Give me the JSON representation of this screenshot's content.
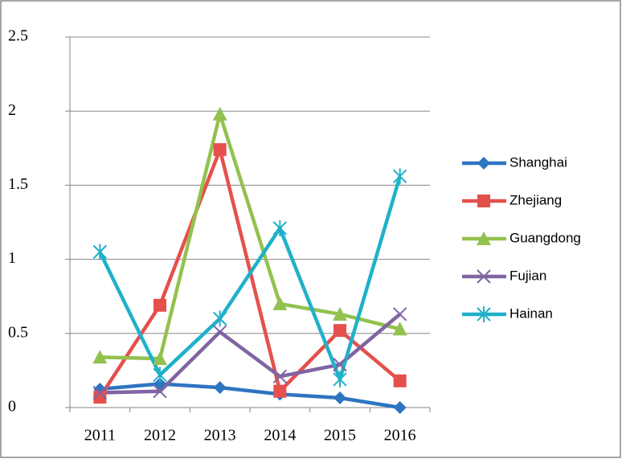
{
  "chart_data": {
    "type": "line",
    "categories": [
      "2011",
      "2012",
      "2013",
      "2014",
      "2015",
      "2016"
    ],
    "series": [
      {
        "name": "Shanghai",
        "color": "#2e75c0",
        "marker": "diamond",
        "values": [
          0.125,
          0.16,
          0.135,
          0.09,
          0.065,
          0.0
        ]
      },
      {
        "name": "Zhejiang",
        "color": "#e5504c",
        "marker": "square",
        "values": [
          0.07,
          0.69,
          1.74,
          0.11,
          0.52,
          0.18
        ]
      },
      {
        "name": "Guangdong",
        "color": "#93c14f",
        "marker": "triangle",
        "values": [
          0.34,
          0.33,
          1.98,
          0.7,
          0.63,
          0.53
        ]
      },
      {
        "name": "Fujian",
        "color": "#8064a2",
        "marker": "x",
        "values": [
          0.1,
          0.11,
          0.51,
          0.21,
          0.29,
          0.63
        ]
      },
      {
        "name": "Hainan",
        "color": "#1fb1c9",
        "marker": "star",
        "values": [
          1.05,
          0.22,
          0.6,
          1.21,
          0.19,
          1.56
        ]
      }
    ],
    "ylim": [
      0,
      2.5
    ],
    "yticks": [
      0,
      0.5,
      1,
      1.5,
      2,
      2.5
    ],
    "grid": true,
    "legend": "right"
  }
}
